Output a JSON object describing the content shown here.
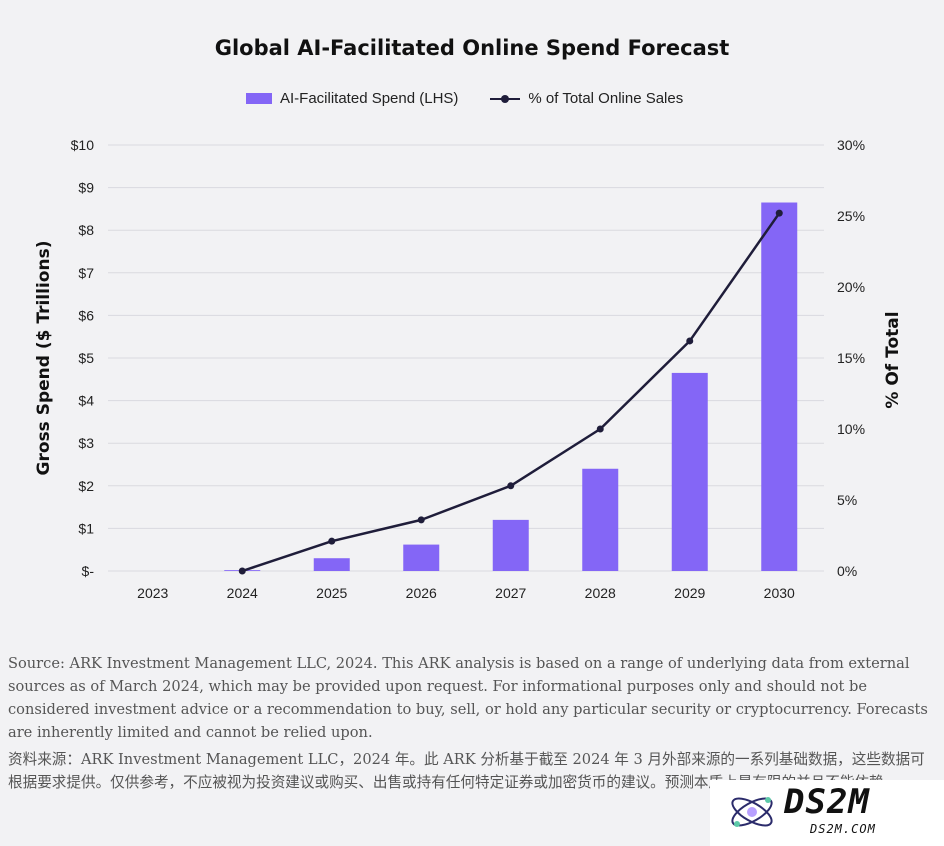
{
  "chart_data": {
    "type": "bar",
    "title": "Global AI-Facilitated Online Spend Forecast",
    "categories": [
      "2023",
      "2024",
      "2025",
      "2026",
      "2027",
      "2028",
      "2029",
      "2030"
    ],
    "series": [
      {
        "name": "AI-Facilitated Spend (LHS)",
        "type": "bar",
        "axis": "left",
        "values": [
          0,
          0.02,
          0.3,
          0.62,
          1.2,
          2.4,
          4.65,
          8.65
        ]
      },
      {
        "name": "% of Total Online Sales",
        "type": "line",
        "axis": "right",
        "values": [
          null,
          0,
          2.1,
          3.6,
          6.0,
          10.0,
          16.2,
          25.2
        ]
      }
    ],
    "ylabel": "Gross Spend ($ Trillions)",
    "ylim": [
      0,
      10
    ],
    "yticks": [
      "$-",
      "$1",
      "$2",
      "$3",
      "$4",
      "$5",
      "$6",
      "$7",
      "$8",
      "$9",
      "$10"
    ],
    "y2label": "% Of Total",
    "y2lim": [
      0,
      30
    ],
    "y2ticks": [
      "0%",
      "5%",
      "10%",
      "15%",
      "20%",
      "25%",
      "30%"
    ],
    "grid": true,
    "legend_position": "top-center",
    "colors": {
      "bar": "#8466f6",
      "line": "#1f1d3a",
      "grid": "#d9d9df",
      "axis_text": "#222222"
    }
  },
  "footer": {
    "source_en": "Source: ARK Investment Management LLC, 2024. This ARK analysis is based on a range of underlying data from external sources as of March 2024, which may be provided upon request. For informational purposes only and should not be considered investment advice or a recommendation to buy, sell, or hold any particular security or cryptocurrency. Forecasts are inherently limited and cannot be relied upon.",
    "source_zh": "资料来源：ARK Investment Management LLC，2024 年。此 ARK 分析基于截至 2024 年 3 月外部来源的一系列基础数据，这些数据可根据要求提供。仅供参考，不应被视为投资建议或购买、出售或持有任何特定证券或加密货币的建议。预测本质上是有限的并且不能依赖。"
  },
  "watermark": {
    "text": "DS2M",
    "url": "DS2M.COM"
  }
}
